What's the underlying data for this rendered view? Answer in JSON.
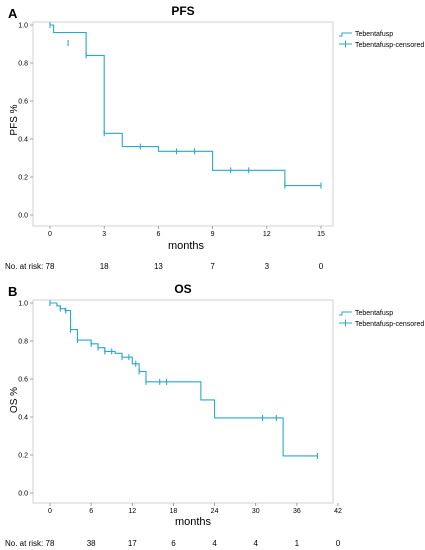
{
  "chart_data": [
    {
      "panel_letter": "A",
      "type": "line",
      "subtype": "kaplan-meier",
      "title": "PFS",
      "xlabel": "months",
      "ylabel": "PFS %",
      "xlim": [
        0,
        15
      ],
      "ylim": [
        0,
        1.0
      ],
      "xticks": [
        "0",
        "3",
        "6",
        "9",
        "12",
        "15"
      ],
      "yticks": [
        "0.0",
        "0.2",
        "0.4",
        "0.6",
        "0.8",
        "1.0"
      ],
      "legend": [
        "Tebentafusp",
        "Tebentafusp-censored"
      ],
      "legend_position": "top-right",
      "grid": false,
      "color": "#29a9c9",
      "series": {
        "name": "Tebentafusp",
        "steps": [
          [
            0,
            1.0
          ],
          [
            0.2,
            0.96
          ],
          [
            2.0,
            0.84
          ],
          [
            3.0,
            0.43
          ],
          [
            4.0,
            0.36
          ],
          [
            6.0,
            0.335
          ],
          [
            9.0,
            0.235
          ],
          [
            13.0,
            0.155
          ],
          [
            15.0,
            0.155
          ]
        ],
        "censored": [
          [
            0,
            1.0
          ],
          [
            1.0,
            0.905
          ],
          [
            2.0,
            0.84
          ],
          [
            3.0,
            0.43
          ],
          [
            5.0,
            0.36
          ],
          [
            7.0,
            0.335
          ],
          [
            8.0,
            0.335
          ],
          [
            10.0,
            0.235
          ],
          [
            11.0,
            0.235
          ],
          [
            13.0,
            0.155
          ],
          [
            15.0,
            0.155
          ]
        ]
      },
      "risk_table": {
        "label": "No. at risk:",
        "values": [
          "78",
          "18",
          "13",
          "7",
          "3",
          "0"
        ]
      }
    },
    {
      "panel_letter": "B",
      "type": "line",
      "subtype": "kaplan-meier",
      "title": "OS",
      "xlabel": "months",
      "ylabel": "OS %",
      "xlim": [
        0,
        42
      ],
      "ylim": [
        0,
        1.0
      ],
      "xticks": [
        "0",
        "6",
        "12",
        "18",
        "24",
        "30",
        "36",
        "42"
      ],
      "yticks": [
        "0.0",
        "0.2",
        "0.4",
        "0.6",
        "0.8",
        "1.0"
      ],
      "legend": [
        "Tebentafusp",
        "Tebentafusp-censored"
      ],
      "legend_position": "top-right",
      "grid": false,
      "color": "#29a9c9",
      "series": {
        "name": "Tebentafusp",
        "steps": [
          [
            0,
            1.0
          ],
          [
            1.0,
            0.985
          ],
          [
            1.5,
            0.97
          ],
          [
            2.2,
            0.96
          ],
          [
            3.0,
            0.86
          ],
          [
            4.0,
            0.805
          ],
          [
            6.0,
            0.785
          ],
          [
            7.0,
            0.765
          ],
          [
            8.0,
            0.745
          ],
          [
            9.5,
            0.735
          ],
          [
            10.5,
            0.715
          ],
          [
            12.0,
            0.68
          ],
          [
            13.0,
            0.64
          ],
          [
            14.0,
            0.585
          ],
          [
            22.0,
            0.49
          ],
          [
            24.0,
            0.395
          ],
          [
            34.0,
            0.195
          ],
          [
            39.0,
            0.195
          ]
        ],
        "censored": [
          [
            0,
            1.0
          ],
          [
            1.5,
            0.97
          ],
          [
            2.3,
            0.96
          ],
          [
            3.0,
            0.86
          ],
          [
            4.0,
            0.805
          ],
          [
            6.0,
            0.785
          ],
          [
            7.0,
            0.765
          ],
          [
            8.0,
            0.745
          ],
          [
            9.0,
            0.745
          ],
          [
            10.5,
            0.715
          ],
          [
            11.5,
            0.715
          ],
          [
            12.5,
            0.68
          ],
          [
            13.0,
            0.64
          ],
          [
            14.0,
            0.585
          ],
          [
            16.0,
            0.585
          ],
          [
            17.0,
            0.585
          ],
          [
            31.0,
            0.395
          ],
          [
            33.0,
            0.395
          ],
          [
            39.0,
            0.195
          ]
        ]
      },
      "risk_table": {
        "label": "No. at risk:",
        "values": [
          "78",
          "38",
          "17",
          "6",
          "4",
          "4",
          "1",
          "0"
        ]
      }
    }
  ]
}
